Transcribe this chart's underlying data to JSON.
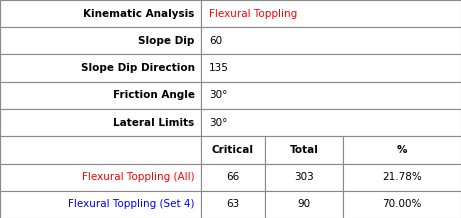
{
  "top_rows": [
    {
      "label": "Kinematic Analysis",
      "value": "Flexural Toppling",
      "value_color": "#ff0000"
    },
    {
      "label": "Slope Dip",
      "value": "60",
      "value_color": "#000000"
    },
    {
      "label": "Slope Dip Direction",
      "value": "135",
      "value_color": "#000000"
    },
    {
      "label": "Friction Angle",
      "value": "30°",
      "value_color": "#000000"
    },
    {
      "label": "Lateral Limits",
      "value": "30°",
      "value_color": "#000000"
    }
  ],
  "header_row": [
    "",
    "Critical",
    "Total",
    "%"
  ],
  "data_rows": [
    {
      "label": "Flexural Toppling (All)",
      "label_color": "#ff0000",
      "critical": "66",
      "total": "303",
      "pct": "21.78%"
    },
    {
      "label": "Flexural Toppling (Set 4)",
      "label_color": "#0000ff",
      "critical": "63",
      "total": "90",
      "pct": "70.00%"
    }
  ],
  "border_color": "#888888",
  "bg_color": "#ffffff",
  "label_bold_color": "#000000",
  "col_split": 0.435,
  "sub_col_splits": [
    0.435,
    0.575,
    0.745,
    1.0
  ],
  "fontsize": 7.5
}
